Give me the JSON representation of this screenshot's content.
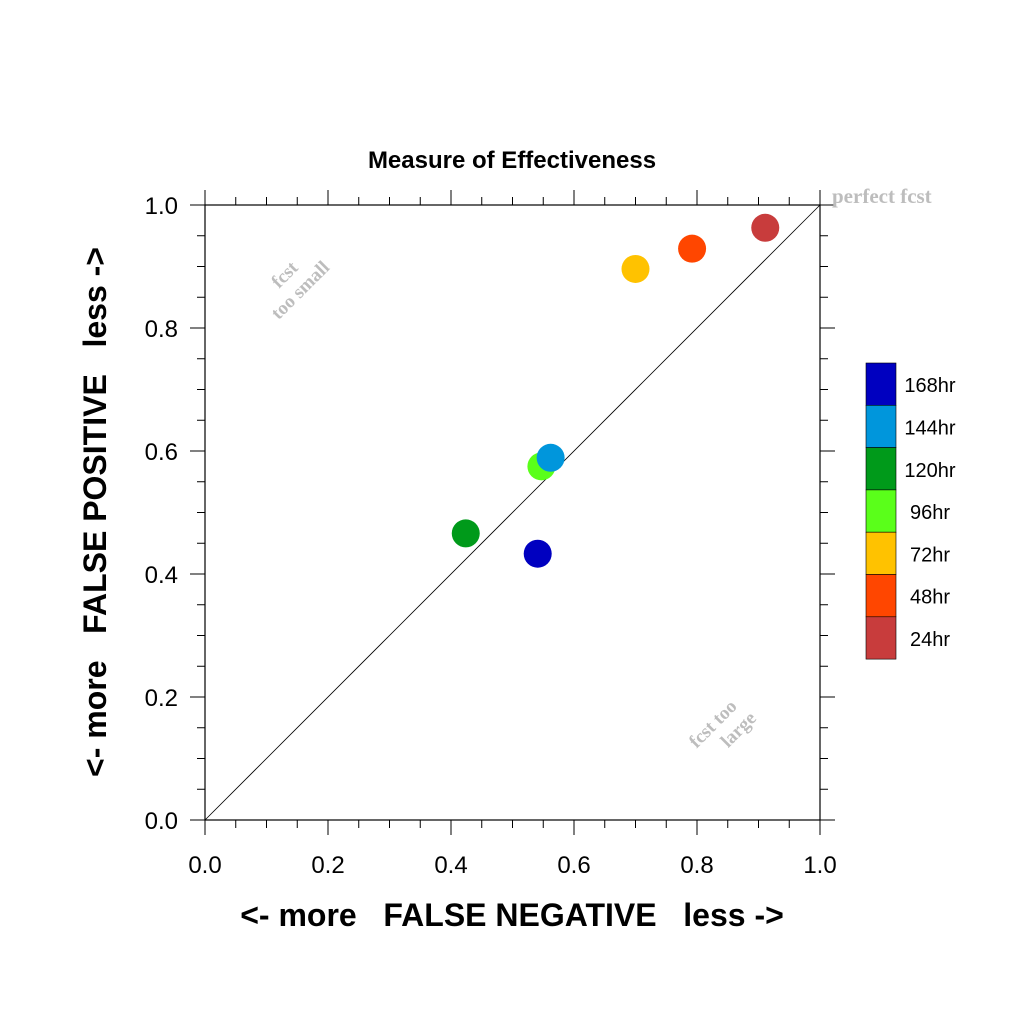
{
  "chart_data": {
    "type": "scatter",
    "title": "Measure of Effectiveness",
    "xlabel": "<- more   FALSE NEGATIVE   less ->",
    "ylabel": "<- more   FALSE POSITIVE   less ->",
    "xlim": [
      0.0,
      1.0
    ],
    "ylim": [
      0.0,
      1.0
    ],
    "x_ticks": [
      "0.0",
      "0.2",
      "0.4",
      "0.6",
      "0.8",
      "1.0"
    ],
    "y_ticks": [
      "0.0",
      "0.2",
      "0.4",
      "0.6",
      "0.8",
      "1.0"
    ],
    "grid": false,
    "legend_position": "right",
    "reference_line": {
      "from": [
        0,
        0
      ],
      "to": [
        1,
        1
      ]
    },
    "annotations": {
      "perfect": "perfect fcst",
      "too_small_1": "fcst",
      "too_small_2": "too small",
      "too_large_1": "fcst too",
      "too_large_2": "large"
    },
    "series": [
      {
        "name": "168hr",
        "color": "#0000c0",
        "x": 0.541,
        "y": 0.433
      },
      {
        "name": "144hr",
        "color": "#0096dc",
        "x": 0.562,
        "y": 0.589
      },
      {
        "name": "120hr",
        "color": "#009a1a",
        "x": 0.424,
        "y": 0.466
      },
      {
        "name": "96hr",
        "color": "#5aff1a",
        "x": 0.547,
        "y": 0.575
      },
      {
        "name": "72hr",
        "color": "#ffc200",
        "x": 0.7,
        "y": 0.896
      },
      {
        "name": "48hr",
        "color": "#ff4600",
        "x": 0.792,
        "y": 0.929
      },
      {
        "name": "24hr",
        "color": "#c83c3c",
        "x": 0.911,
        "y": 0.963
      }
    ]
  }
}
